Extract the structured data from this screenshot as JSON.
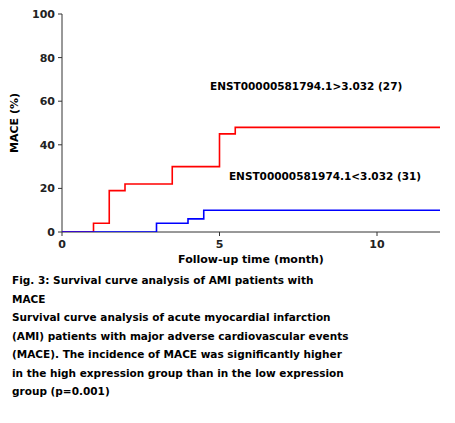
{
  "chart_data": {
    "type": "step",
    "series": [
      {
        "color": "#FF0000",
        "x": [
          0,
          1,
          1,
          1.5,
          1.5,
          2,
          2,
          3.5,
          3.5,
          5,
          5,
          5.5,
          5.5,
          6,
          6,
          12
        ],
        "values": [
          0,
          0,
          4,
          4,
          19,
          19,
          22,
          22,
          30,
          30,
          45,
          45,
          48,
          48,
          48,
          48
        ]
      },
      {
        "color": "#0000FF",
        "x": [
          0,
          3,
          3,
          4,
          4,
          4.5,
          4.5,
          6,
          6,
          12
        ],
        "values": [
          0,
          0,
          4,
          4,
          6,
          6,
          10,
          10,
          10,
          10
        ]
      }
    ],
    "annotations": [
      {
        "text": "ENST00000581794.1>3.032 (27)",
        "x": 4.7,
        "y": 64
      },
      {
        "text": "ENST00000581974.1<3.032 (31)",
        "x": 5.3,
        "y": 23
      }
    ],
    "x_label": "Follow-up time (month)",
    "y_label": "MACE (%)",
    "xlim": [
      0,
      12
    ],
    "ylim": [
      0,
      100
    ],
    "xticks": [
      0,
      5,
      10
    ],
    "yticks": [
      0,
      20,
      40,
      60,
      80,
      100
    ],
    "grid": false,
    "caption": [
      "Fig. 3:  Survival curve analysis of AMI patients with",
      "MACE",
      "Survival curve analysis of acute myocardial infarction",
      "(AMI) patients with major adverse cardiovascular events",
      "(MACE). The incidence of MACE was significantly higher",
      "in the high expression group than in the low expression",
      "group (p=0.001)"
    ]
  }
}
